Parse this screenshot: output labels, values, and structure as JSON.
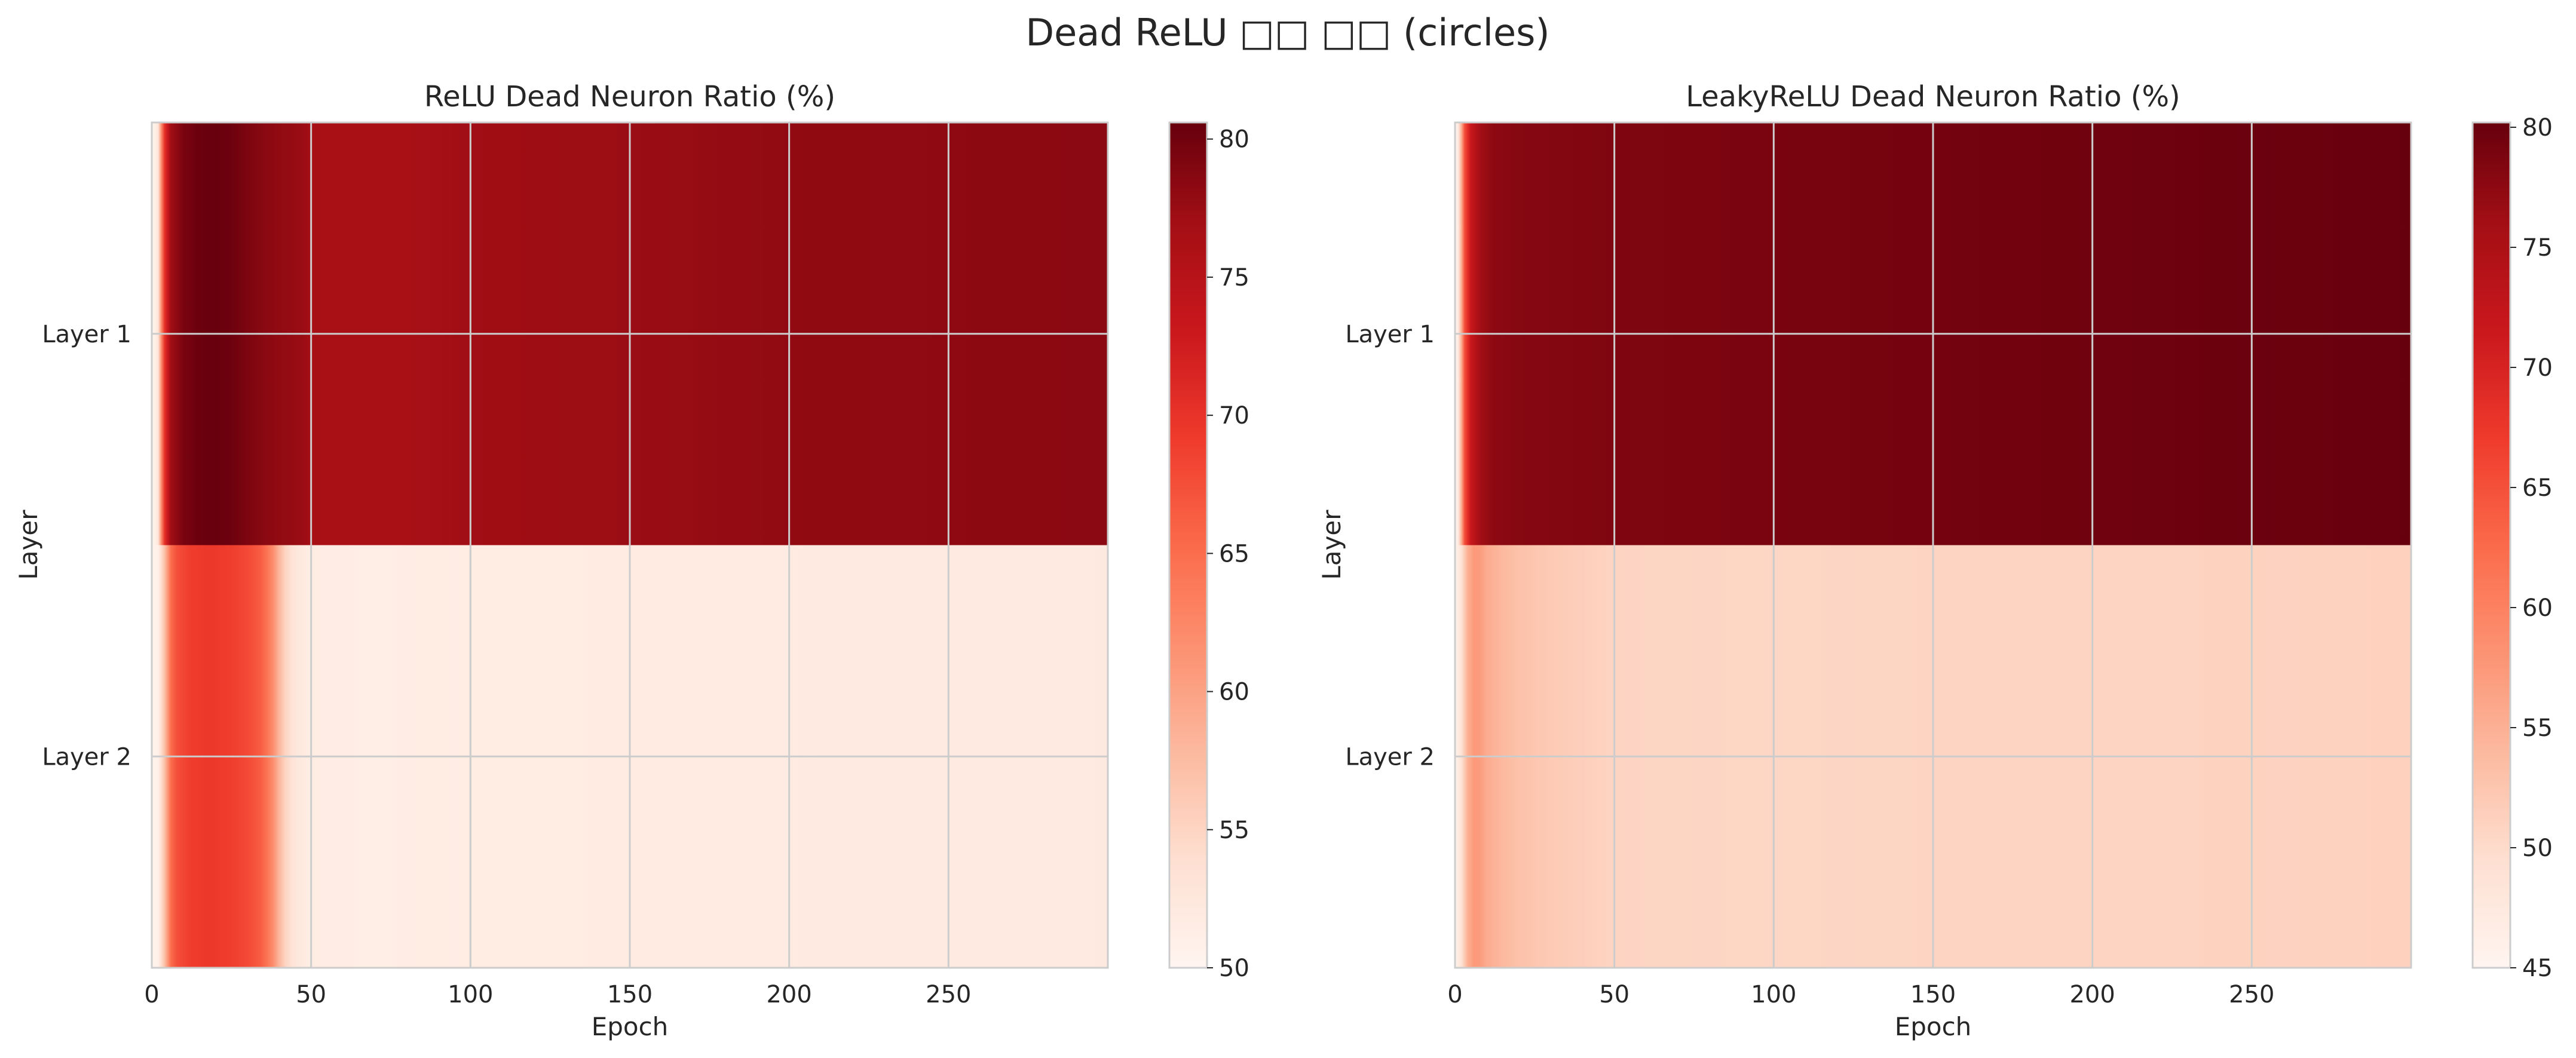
{
  "figure": {
    "title": "Dead ReLU □□ □□ (circles)"
  },
  "chart_data": [
    {
      "type": "heatmap",
      "title": "ReLU Dead Neuron Ratio (%)",
      "xlabel": "Epoch",
      "ylabel": "Layer",
      "rows": [
        "Layer 1",
        "Layer 2"
      ],
      "x_ticks": [
        0,
        50,
        100,
        150,
        200,
        250
      ],
      "xlim": [
        0,
        300
      ],
      "grid": true,
      "colormap": "Reds",
      "colorbar": {
        "min": 50,
        "max": 80.6,
        "ticks": [
          50,
          55,
          60,
          65,
          70,
          75,
          80
        ]
      },
      "profiles": [
        {
          "row": "Layer 1",
          "points": [
            [
              0,
              50
            ],
            [
              1,
              51
            ],
            [
              2,
              53
            ],
            [
              3,
              62
            ],
            [
              4,
              70
            ],
            [
              6,
              77
            ],
            [
              10,
              79.5
            ],
            [
              15,
              80.4
            ],
            [
              20,
              80.6
            ],
            [
              25,
              80.2
            ],
            [
              30,
              79.3
            ],
            [
              35,
              78.5
            ],
            [
              40,
              78
            ],
            [
              45,
              77.6
            ],
            [
              48,
              77.3
            ],
            [
              50,
              76.6
            ],
            [
              60,
              76.4
            ],
            [
              80,
              76.5
            ],
            [
              100,
              77
            ],
            [
              150,
              77.4
            ],
            [
              200,
              78
            ],
            [
              250,
              78.2
            ],
            [
              299,
              78.4
            ]
          ]
        },
        {
          "row": "Layer 2",
          "points": [
            [
              0,
              50.2
            ],
            [
              2,
              51
            ],
            [
              4,
              57
            ],
            [
              6,
              65
            ],
            [
              8,
              67.5
            ],
            [
              12,
              69
            ],
            [
              18,
              69.5
            ],
            [
              25,
              69
            ],
            [
              30,
              68
            ],
            [
              35,
              66
            ],
            [
              38,
              62
            ],
            [
              40,
              58
            ],
            [
              42,
              55
            ],
            [
              45,
              52.5
            ],
            [
              50,
              51.5
            ],
            [
              70,
              51.3
            ],
            [
              100,
              51.6
            ],
            [
              150,
              51.8
            ],
            [
              200,
              51.9
            ],
            [
              250,
              52
            ],
            [
              299,
              52.1
            ]
          ]
        }
      ]
    },
    {
      "type": "heatmap",
      "title": "LeakyReLU Dead Neuron Ratio (%)",
      "xlabel": "Epoch",
      "ylabel": "Layer",
      "rows": [
        "Layer 1",
        "Layer 2"
      ],
      "x_ticks": [
        0,
        50,
        100,
        150,
        200,
        250
      ],
      "xlim": [
        0,
        300
      ],
      "grid": true,
      "colormap": "Reds",
      "colorbar": {
        "min": 45,
        "max": 80.2,
        "ticks": [
          45,
          50,
          55,
          60,
          65,
          70,
          75,
          80
        ]
      },
      "profiles": [
        {
          "row": "Layer 1",
          "points": [
            [
              0,
              45
            ],
            [
              1,
              47
            ],
            [
              2,
              55
            ],
            [
              3,
              65
            ],
            [
              5,
              72
            ],
            [
              8,
              76
            ],
            [
              12,
              77.5
            ],
            [
              20,
              78
            ],
            [
              30,
              78.2
            ],
            [
              50,
              78.5
            ],
            [
              100,
              78.9
            ],
            [
              150,
              79.3
            ],
            [
              200,
              79.6
            ],
            [
              250,
              79.9
            ],
            [
              299,
              80.2
            ]
          ]
        },
        {
          "row": "Layer 2",
          "points": [
            [
              0,
              45.3
            ],
            [
              2,
              49
            ],
            [
              4,
              55
            ],
            [
              6,
              57.5
            ],
            [
              8,
              57
            ],
            [
              10,
              55.5
            ],
            [
              15,
              54
            ],
            [
              20,
              53
            ],
            [
              30,
              52
            ],
            [
              40,
              51.5
            ],
            [
              50,
              50.8
            ],
            [
              100,
              50.6
            ],
            [
              150,
              50.8
            ],
            [
              200,
              50.9
            ],
            [
              250,
              51
            ],
            [
              299,
              51.2
            ]
          ]
        }
      ]
    }
  ]
}
